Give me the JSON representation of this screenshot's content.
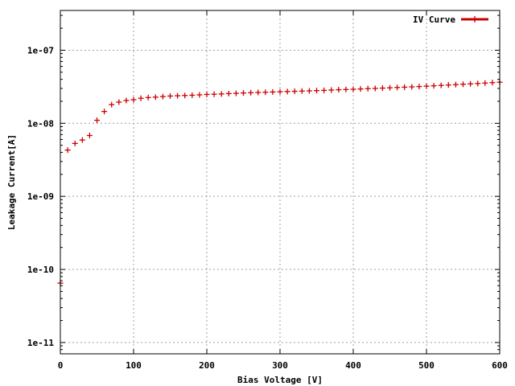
{
  "chart_data": {
    "type": "scatter",
    "title": "",
    "xlabel": "Bias Voltage [V]",
    "ylabel": "Leakage Current[A]",
    "xlim": [
      0,
      600
    ],
    "ylim": [
      7e-12,
      3.5e-07
    ],
    "y_scale": "log",
    "grid": true,
    "legend_position": "top-right",
    "x_ticks": [
      "0",
      "100",
      "200",
      "300",
      "400",
      "500",
      "600"
    ],
    "y_ticks": [
      {
        "value": 1e-11,
        "label": "1e-11"
      },
      {
        "value": 1e-10,
        "label": "1e-10"
      },
      {
        "value": 1e-09,
        "label": "1e-09"
      },
      {
        "value": 1e-08,
        "label": "1e-08"
      },
      {
        "value": 1e-07,
        "label": "1e-07"
      }
    ],
    "series": [
      {
        "name": "IV Curve",
        "color": "#cc0000",
        "x": [
          0,
          10,
          20,
          30,
          40,
          50,
          60,
          70,
          80,
          90,
          100,
          110,
          120,
          130,
          140,
          150,
          160,
          170,
          180,
          190,
          200,
          210,
          220,
          230,
          240,
          250,
          260,
          270,
          280,
          290,
          300,
          310,
          320,
          330,
          340,
          350,
          360,
          370,
          380,
          390,
          400,
          410,
          420,
          430,
          440,
          450,
          460,
          470,
          480,
          490,
          500,
          510,
          520,
          530,
          540,
          550,
          560,
          570,
          580,
          590,
          600
        ],
        "y": [
          6.5e-11,
          4.3e-09,
          5.3e-09,
          5.9e-09,
          6.8e-09,
          1.1e-08,
          1.45e-08,
          1.8e-08,
          1.95e-08,
          2.05e-08,
          2.1e-08,
          2.2e-08,
          2.25e-08,
          2.28e-08,
          2.32e-08,
          2.36e-08,
          2.38e-08,
          2.4e-08,
          2.42e-08,
          2.45e-08,
          2.48e-08,
          2.5e-08,
          2.52e-08,
          2.55e-08,
          2.57e-08,
          2.6e-08,
          2.62e-08,
          2.64e-08,
          2.66e-08,
          2.68e-08,
          2.7e-08,
          2.72e-08,
          2.74e-08,
          2.76e-08,
          2.78e-08,
          2.8e-08,
          2.82e-08,
          2.85e-08,
          2.88e-08,
          2.9e-08,
          2.92e-08,
          2.95e-08,
          2.98e-08,
          3e-08,
          3.03e-08,
          3.06e-08,
          3.09e-08,
          3.12e-08,
          3.15e-08,
          3.18e-08,
          3.22e-08,
          3.26e-08,
          3.3e-08,
          3.34e-08,
          3.38e-08,
          3.42e-08,
          3.46e-08,
          3.5e-08,
          3.55e-08,
          3.6e-08,
          3.65e-08
        ]
      }
    ]
  }
}
